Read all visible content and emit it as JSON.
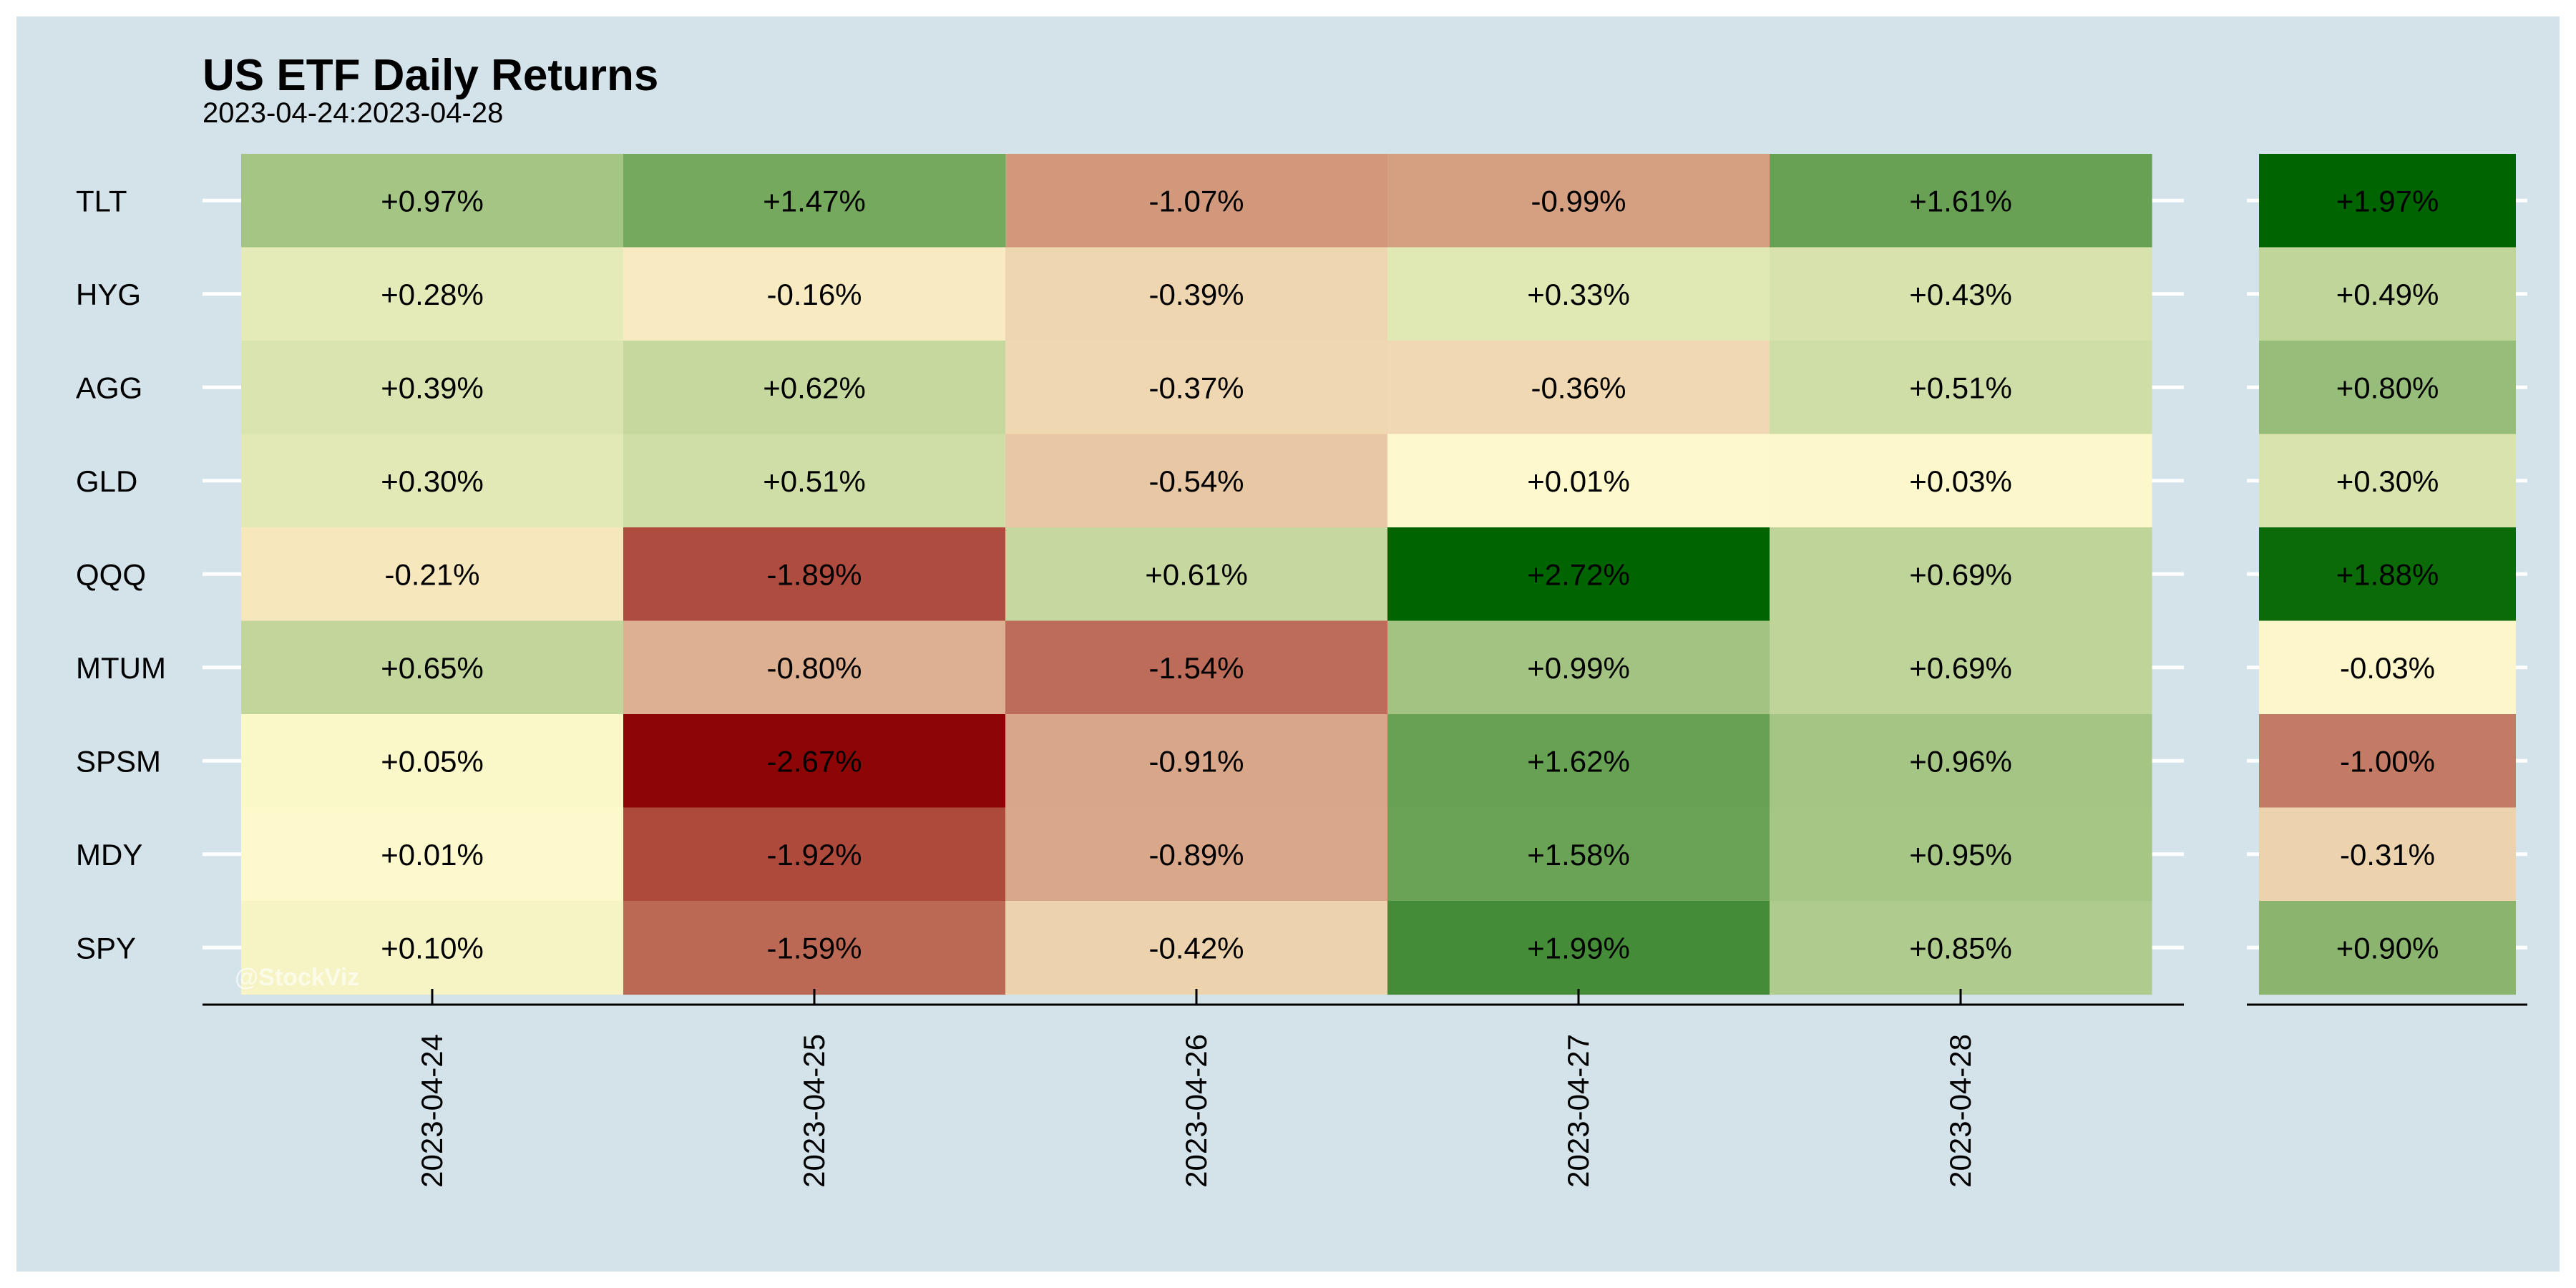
{
  "chart_data": {
    "type": "heatmap",
    "title": "US ETF Daily Returns",
    "subtitle": "2023-04-24:2023-04-28",
    "watermark": "@StockViz",
    "rows": [
      "TLT",
      "HYG",
      "AGG",
      "GLD",
      "QQQ",
      "MTUM",
      "SPSM",
      "MDY",
      "SPY"
    ],
    "columns": [
      "2023-04-24",
      "2023-04-25",
      "2023-04-26",
      "2023-04-27",
      "2023-04-28"
    ],
    "values": [
      [
        0.97,
        1.47,
        -1.07,
        -0.99,
        1.61
      ],
      [
        0.28,
        -0.16,
        -0.39,
        0.33,
        0.43
      ],
      [
        0.39,
        0.62,
        -0.37,
        -0.36,
        0.51
      ],
      [
        0.3,
        0.51,
        -0.54,
        0.01,
        0.03
      ],
      [
        -0.21,
        -1.89,
        0.61,
        2.72,
        0.69
      ],
      [
        0.65,
        -0.8,
        -1.54,
        0.99,
        0.69
      ],
      [
        0.05,
        -2.67,
        -0.91,
        1.62,
        0.96
      ],
      [
        0.01,
        -1.92,
        -0.89,
        1.58,
        0.95
      ],
      [
        0.1,
        -1.59,
        -0.42,
        1.99,
        0.85
      ]
    ],
    "value_format": "percent, signed, 2 decimals",
    "total_column": [
      1.97,
      0.49,
      0.8,
      0.3,
      1.88,
      -0.03,
      -1.0,
      -0.31,
      0.9
    ],
    "colors": {
      "negative": "#8b0000",
      "neutral": "#fffacd",
      "positive": "#006400",
      "panel_background": "#d4e3ea"
    },
    "grid": false,
    "legend": "none"
  }
}
